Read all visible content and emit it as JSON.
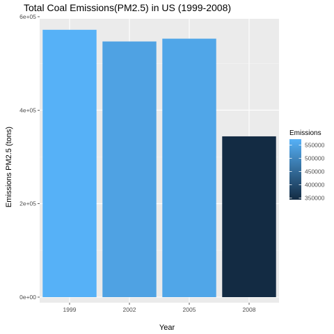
{
  "chart_data": {
    "type": "bar",
    "title": "Total Coal Emissions(PM2.5) in US (1999-2008)",
    "xlabel": "Year",
    "ylabel": "Emissions PM2.5 (tons)",
    "categories": [
      "1999",
      "2002",
      "2005",
      "2008"
    ],
    "values": [
      572000,
      547000,
      553000,
      344000
    ],
    "ylim": [
      0,
      600000
    ],
    "y_ticks": [
      0,
      200000,
      400000,
      600000
    ],
    "y_tick_labels": [
      "0e+00",
      "2e+05",
      "4e+05",
      "6e+05"
    ],
    "grid": true,
    "legend": {
      "title": "Emissions",
      "position": "right",
      "range": [
        344000,
        572000
      ],
      "ticks": [
        350000,
        400000,
        450000,
        500000,
        550000
      ],
      "tick_labels": [
        "350000",
        "400000",
        "450000",
        "500000",
        "550000"
      ],
      "color_low": "#132B43",
      "color_high": "#56B1F7"
    },
    "colors": {
      "panel_background": "#EBEBEB",
      "grid_major": "#FFFFFF",
      "grid_minor": "#F5F5F5"
    }
  }
}
